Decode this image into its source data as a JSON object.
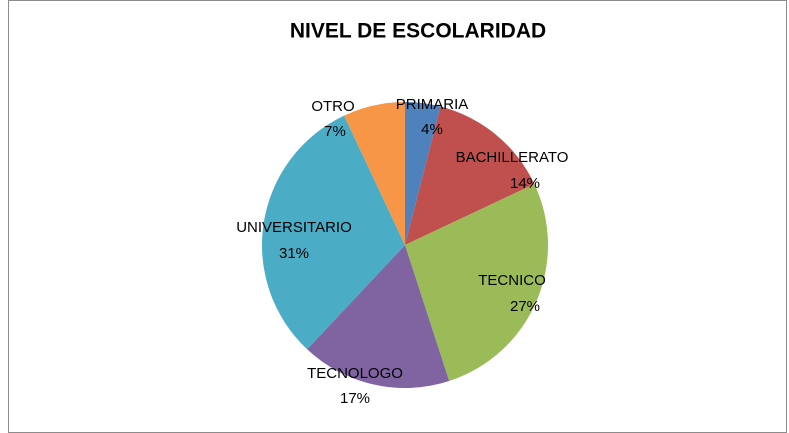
{
  "chart_data": {
    "type": "pie",
    "title": "NIVEL DE ESCOLARIDAD",
    "categories": [
      "PRIMARIA",
      "BACHILLERATO",
      "TECNICO",
      "TECNOLOGO",
      "UNIVERSITARIO",
      "OTRO"
    ],
    "values": [
      4,
      14,
      27,
      17,
      31,
      7
    ],
    "value_labels": [
      "4%",
      "14%",
      "27%",
      "17%",
      "31%",
      "7%"
    ],
    "colors": [
      "#4f81bd",
      "#c0504d",
      "#9bbb59",
      "#8064a2",
      "#4bacc6",
      "#f79646"
    ]
  }
}
